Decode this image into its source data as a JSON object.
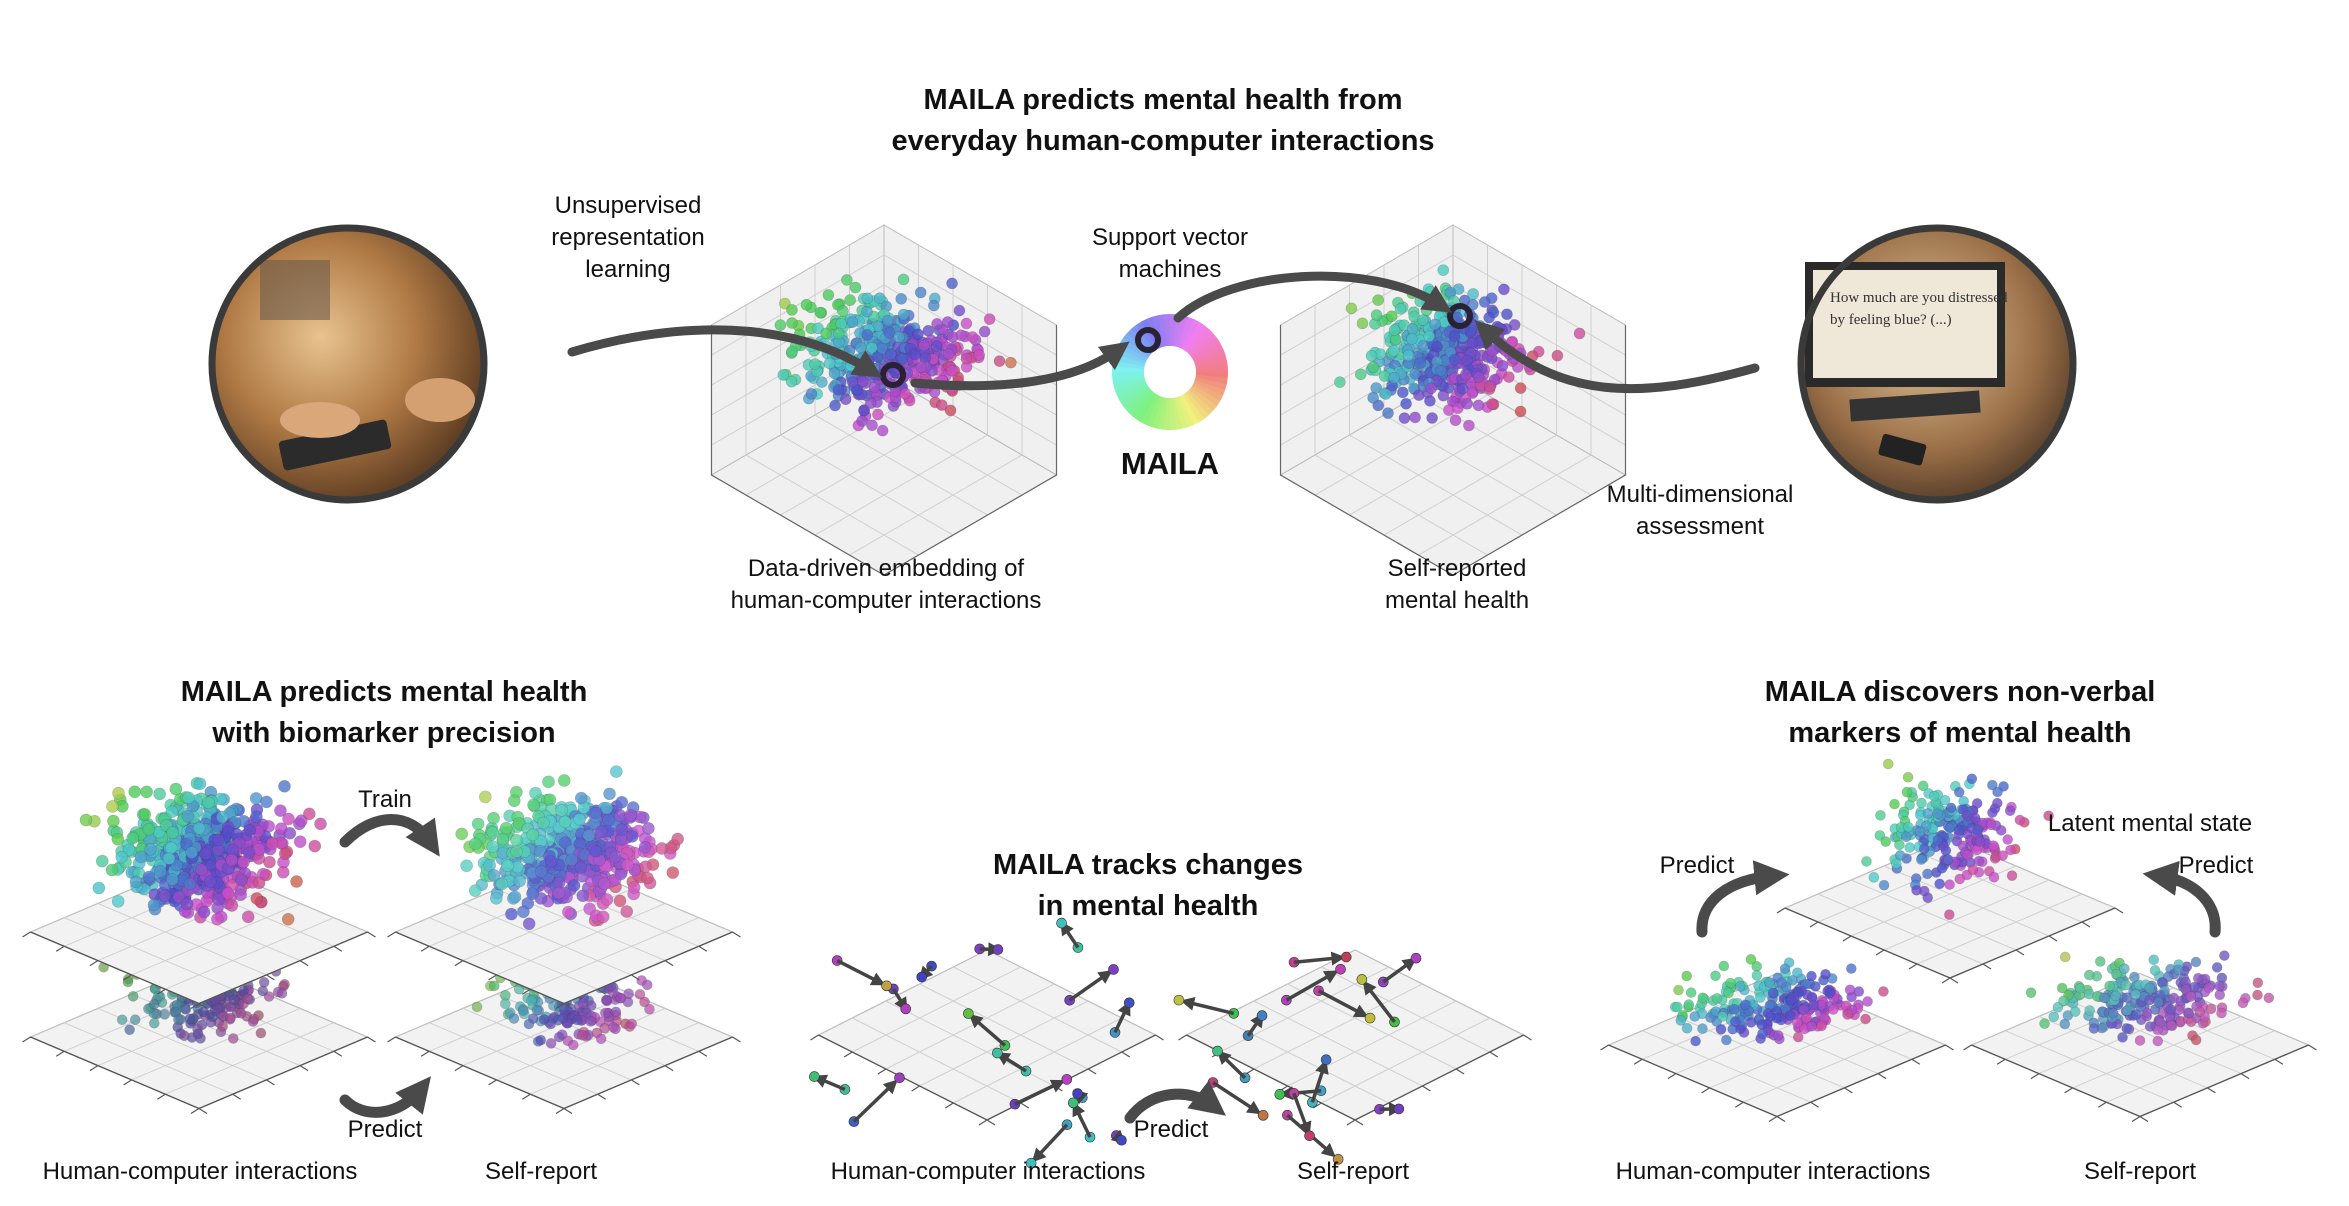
{
  "top": {
    "title_line1": "MAILA predicts mental health from",
    "title_line2": "everyday human-computer interactions",
    "unsupervised_line1": "Unsupervised",
    "unsupervised_line2": "representation",
    "unsupervised_line3": "learning",
    "svm_line1": "Support vector",
    "svm_line2": "machines",
    "maila_label": "MAILA",
    "embedding_line1": "Data-driven embedding of",
    "embedding_line2": "human-computer interactions",
    "selfreported_line1": "Self-reported",
    "selfreported_line2": "mental health",
    "assessment_line1": "Multi-dimensional",
    "assessment_line2": "assessment",
    "monitor_line1": "How much are you distressed",
    "monitor_line2": "by feeling blue? (...)"
  },
  "left_panel": {
    "title_line1": "MAILA predicts mental health",
    "title_line2": "with biomarker precision",
    "train_label": "Train",
    "predict_label": "Predict",
    "x_label": "Human-computer interactions",
    "y_label": "Self-report"
  },
  "middle_panel": {
    "title_line1": "MAILA tracks changes",
    "title_line2": "in mental health",
    "predict_label": "Predict",
    "x_label": "Human-computer interactions",
    "y_label": "Self-report"
  },
  "right_panel": {
    "title_line1": "MAILA discovers non-verbal",
    "title_line2": "markers of mental health",
    "predict_left_label": "Predict",
    "predict_right_label": "Predict",
    "latent_label": "Latent mental state",
    "x_label": "Human-computer interactions",
    "y_label": "Self-report"
  },
  "colors": {
    "arrow": "#4a4a4a",
    "plane_fill": "#f2f2f2",
    "grid": "#cfcfcf",
    "photo_border": "#3a3a3a"
  }
}
